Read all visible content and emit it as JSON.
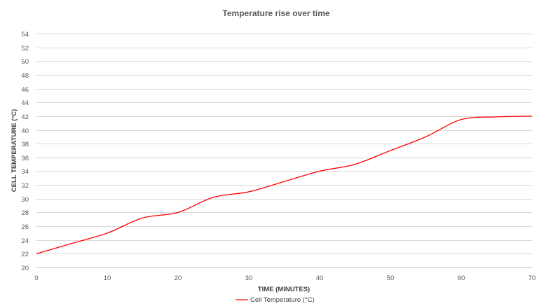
{
  "chart_data": {
    "type": "line",
    "title": "Temperature rise over time",
    "xlabel": "TIME (MINUTES)",
    "ylabel": "CELL TEMPERATURE (°C)",
    "xlim": [
      0,
      70
    ],
    "ylim": [
      20,
      54
    ],
    "x_ticks": [
      0,
      10,
      20,
      30,
      40,
      50,
      60,
      70
    ],
    "y_ticks": [
      20,
      22,
      24,
      26,
      28,
      30,
      32,
      34,
      36,
      38,
      40,
      42,
      44,
      46,
      48,
      50,
      52,
      54
    ],
    "grid": true,
    "legend_position": "bottom",
    "series": [
      {
        "name": "Cell Temperature (°C)",
        "color": "#ff0000",
        "x": [
          0,
          5,
          10,
          15,
          20,
          25,
          30,
          35,
          40,
          45,
          50,
          55,
          60,
          65,
          70
        ],
        "y": [
          22,
          23.5,
          25,
          27.2,
          28,
          30.2,
          31,
          32.5,
          34,
          35,
          37,
          39,
          41.5,
          41.9,
          42
        ]
      }
    ]
  }
}
